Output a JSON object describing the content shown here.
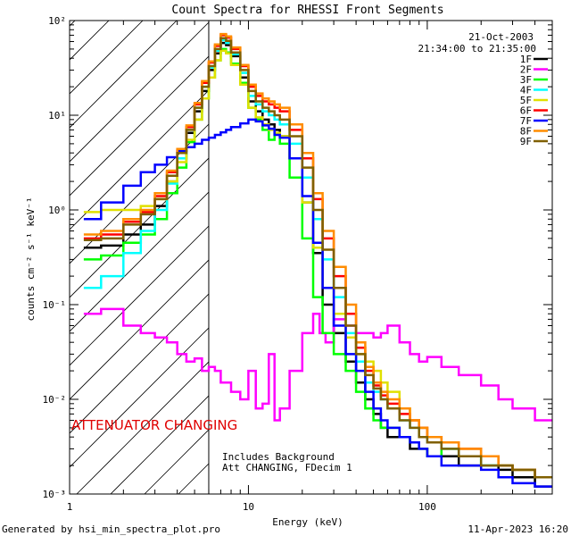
{
  "chart_data": {
    "type": "line",
    "title": "Count Spectra for RHESSI Front Segments",
    "xlabel": "Energy (keV)",
    "ylabel": "counts cm⁻² s⁻¹ keV⁻¹",
    "xscale": "log",
    "yscale": "log",
    "xlim": [
      1,
      500
    ],
    "ylim": [
      0.001,
      100
    ],
    "x_ticks": [
      "1",
      "10",
      "100"
    ],
    "y_ticks": [
      "10⁻³",
      "10⁻²",
      "10⁻¹",
      "10⁰",
      "10¹",
      "10²"
    ],
    "date": "21-Oct-2003",
    "time_range": "21:34:00 to 21:35:00",
    "attenuator_text": "ATTENUATOR CHANGING",
    "background_note": "Includes Background",
    "att_note": "Att CHANGING, FDecim 1",
    "attenuator_boundary_kev": 6,
    "hatch_region_kev": [
      1,
      6
    ],
    "footer_left": "Generated by hsi_min_spectra_plot.pro",
    "footer_right": "11-Apr-2023 16:20",
    "series": [
      {
        "name": "1F",
        "color": "#000000",
        "x": [
          1.2,
          1.5,
          2,
          2.5,
          3,
          3.5,
          4,
          4.5,
          5,
          5.5,
          6,
          6.5,
          7,
          7.5,
          8,
          9,
          10,
          11,
          12,
          13,
          14,
          15,
          17,
          20,
          23,
          26,
          30,
          35,
          40,
          45,
          50,
          55,
          60,
          70,
          80,
          90,
          100,
          120,
          150,
          200,
          250,
          300,
          400
        ],
        "y": [
          0.4,
          0.42,
          0.55,
          0.7,
          1.1,
          2.0,
          3.5,
          6.5,
          11,
          18,
          30,
          45,
          58,
          55,
          42,
          25,
          14,
          11,
          9,
          8,
          7,
          6,
          3.5,
          1.2,
          0.35,
          0.1,
          0.05,
          0.025,
          0.015,
          0.01,
          0.007,
          0.005,
          0.004,
          0.004,
          0.003,
          0.003,
          0.0025,
          0.0025,
          0.002,
          0.002,
          0.0018,
          0.0015,
          0.0012
        ]
      },
      {
        "name": "2F",
        "color": "#ff00ff",
        "x": [
          1.2,
          1.5,
          2,
          2.5,
          3,
          3.5,
          4,
          4.5,
          5,
          5.5,
          6,
          6.5,
          7,
          8,
          9,
          10,
          11,
          12,
          13,
          14,
          15,
          17,
          20,
          23,
          25,
          27,
          30,
          35,
          40,
          45,
          50,
          55,
          60,
          70,
          80,
          90,
          100,
          120,
          150,
          200,
          250,
          300,
          400
        ],
        "y": [
          0.08,
          0.09,
          0.06,
          0.05,
          0.045,
          0.04,
          0.03,
          0.025,
          0.027,
          0.02,
          0.022,
          0.02,
          0.015,
          0.012,
          0.01,
          0.02,
          0.008,
          0.009,
          0.03,
          0.006,
          0.008,
          0.02,
          0.05,
          0.08,
          0.05,
          0.04,
          0.07,
          0.06,
          0.05,
          0.05,
          0.045,
          0.05,
          0.06,
          0.04,
          0.03,
          0.025,
          0.028,
          0.022,
          0.018,
          0.014,
          0.01,
          0.008,
          0.006
        ]
      },
      {
        "name": "3F",
        "color": "#00ff00",
        "x": [
          1.2,
          1.5,
          2,
          2.5,
          3,
          3.5,
          4,
          4.5,
          5,
          5.5,
          6,
          6.5,
          7,
          7.5,
          8,
          9,
          10,
          11,
          12,
          13,
          14,
          15,
          17,
          20,
          23,
          26,
          30,
          35,
          40,
          45,
          50,
          55,
          60,
          70,
          80,
          90,
          100,
          120,
          150,
          200,
          250,
          300,
          400
        ],
        "y": [
          0.3,
          0.33,
          0.45,
          0.55,
          0.8,
          1.5,
          2.8,
          5.2,
          9,
          15,
          25,
          38,
          50,
          46,
          35,
          22,
          12,
          9,
          7,
          5.5,
          6.5,
          5,
          2.2,
          0.5,
          0.12,
          0.05,
          0.03,
          0.02,
          0.012,
          0.008,
          0.006,
          0.005,
          0.005,
          0.004,
          0.0035,
          0.003,
          0.0025,
          0.003,
          0.0025,
          0.002,
          0.002,
          0.0018,
          0.0015
        ]
      },
      {
        "name": "4F",
        "color": "#00ffff",
        "x": [
          1.2,
          1.5,
          2,
          2.5,
          3,
          3.5,
          4,
          4.5,
          5,
          5.5,
          6,
          6.5,
          7,
          7.5,
          8,
          9,
          10,
          11,
          12,
          13,
          14,
          15,
          17,
          20,
          23,
          26,
          30,
          35,
          40,
          45,
          50,
          55,
          60,
          70,
          80,
          90,
          100,
          120,
          150,
          200,
          250,
          300,
          400
        ],
        "y": [
          0.15,
          0.2,
          0.35,
          0.6,
          1.0,
          1.9,
          3.5,
          7,
          12,
          20,
          32,
          48,
          62,
          58,
          44,
          28,
          16,
          13,
          11,
          10,
          9,
          8,
          5,
          2.2,
          0.8,
          0.3,
          0.12,
          0.05,
          0.025,
          0.015,
          0.012,
          0.01,
          0.008,
          0.006,
          0.005,
          0.004,
          0.0035,
          0.003,
          0.0025,
          0.002,
          0.002,
          0.0018,
          0.0015
        ]
      },
      {
        "name": "5F",
        "color": "#e0e000",
        "x": [
          1.2,
          1.5,
          2,
          2.5,
          3,
          3.5,
          4,
          4.5,
          5,
          5.5,
          6,
          6.5,
          7,
          7.5,
          8,
          9,
          10,
          11,
          12,
          13,
          14,
          15,
          17,
          20,
          23,
          26,
          30,
          35,
          40,
          45,
          50,
          55,
          60,
          70,
          80,
          90,
          100,
          120,
          150,
          200,
          250,
          300,
          400
        ],
        "y": [
          0.95,
          1.0,
          1.0,
          1.1,
          1.3,
          2.0,
          3.2,
          5.5,
          9,
          15,
          25,
          38,
          48,
          45,
          34,
          21,
          12,
          9.5,
          8,
          7,
          6.5,
          6,
          3.5,
          1.2,
          0.4,
          0.15,
          0.08,
          0.045,
          0.03,
          0.025,
          0.02,
          0.015,
          0.012,
          0.008,
          0.006,
          0.005,
          0.004,
          0.0035,
          0.003,
          0.0025,
          0.002,
          0.0018,
          0.0015
        ]
      },
      {
        "name": "6F",
        "color": "#ff0000",
        "x": [
          1.2,
          1.5,
          2,
          2.5,
          3,
          3.5,
          4,
          4.5,
          5,
          5.5,
          6,
          6.5,
          7,
          7.5,
          8,
          9,
          10,
          11,
          12,
          13,
          14,
          15,
          17,
          20,
          23,
          26,
          30,
          35,
          40,
          45,
          50,
          55,
          60,
          70,
          80,
          90,
          100,
          120,
          150,
          200,
          250,
          300,
          400
        ],
        "y": [
          0.5,
          0.55,
          0.75,
          0.95,
          1.4,
          2.5,
          4.2,
          7.5,
          13,
          22,
          36,
          54,
          70,
          66,
          50,
          33,
          20,
          16,
          14,
          13,
          12,
          11,
          7,
          3.5,
          1.3,
          0.5,
          0.2,
          0.08,
          0.035,
          0.02,
          0.014,
          0.011,
          0.009,
          0.007,
          0.006,
          0.005,
          0.004,
          0.0035,
          0.003,
          0.0025,
          0.002,
          0.0018,
          0.0015
        ]
      },
      {
        "name": "7F",
        "color": "#0000ff",
        "x": [
          1.2,
          1.5,
          2,
          2.5,
          3,
          3.5,
          4,
          4.5,
          5,
          5.5,
          6,
          6.5,
          7,
          7.5,
          8,
          9,
          10,
          11,
          12,
          13,
          14,
          15,
          17,
          20,
          23,
          26,
          30,
          35,
          40,
          45,
          50,
          55,
          60,
          70,
          80,
          90,
          100,
          120,
          150,
          200,
          250,
          300,
          400
        ],
        "y": [
          0.8,
          1.2,
          1.8,
          2.5,
          3.0,
          3.6,
          4.2,
          4.6,
          5.0,
          5.5,
          5.8,
          6.2,
          6.6,
          7.0,
          7.5,
          8.2,
          9.0,
          8.6,
          7.8,
          7.2,
          6.2,
          5.8,
          3.5,
          1.4,
          0.45,
          0.15,
          0.06,
          0.03,
          0.02,
          0.012,
          0.008,
          0.006,
          0.005,
          0.004,
          0.0035,
          0.003,
          0.0025,
          0.002,
          0.002,
          0.0018,
          0.0015,
          0.0013,
          0.0012
        ]
      },
      {
        "name": "8F",
        "color": "#ff8c00",
        "x": [
          1.2,
          1.5,
          2,
          2.5,
          3,
          3.5,
          4,
          4.5,
          5,
          5.5,
          6,
          6.5,
          7,
          7.5,
          8,
          9,
          10,
          11,
          12,
          13,
          14,
          15,
          17,
          20,
          23,
          26,
          30,
          35,
          40,
          45,
          50,
          55,
          60,
          70,
          80,
          90,
          100,
          120,
          150,
          200,
          250,
          300,
          400
        ],
        "y": [
          0.55,
          0.6,
          0.8,
          1.0,
          1.5,
          2.6,
          4.4,
          7.8,
          13.5,
          23,
          37,
          56,
          72,
          68,
          52,
          34,
          21,
          17,
          15,
          14,
          13,
          12,
          8,
          4,
          1.5,
          0.6,
          0.25,
          0.1,
          0.04,
          0.022,
          0.015,
          0.012,
          0.01,
          0.008,
          0.006,
          0.005,
          0.004,
          0.0035,
          0.003,
          0.0025,
          0.002,
          0.0018,
          0.0015
        ]
      },
      {
        "name": "9F",
        "color": "#806000",
        "x": [
          1.2,
          1.5,
          2,
          2.5,
          3,
          3.5,
          4,
          4.5,
          5,
          5.5,
          6,
          6.5,
          7,
          7.5,
          8,
          9,
          10,
          11,
          12,
          13,
          14,
          15,
          17,
          20,
          23,
          26,
          30,
          35,
          40,
          45,
          50,
          55,
          60,
          70,
          80,
          90,
          100,
          120,
          150,
          200,
          250,
          300,
          400
        ],
        "y": [
          0.48,
          0.5,
          0.7,
          0.9,
          1.3,
          2.3,
          4.0,
          7.0,
          12,
          20,
          33,
          50,
          65,
          61,
          46,
          30,
          18,
          14,
          12,
          11,
          10,
          9,
          6,
          2.8,
          1.0,
          0.38,
          0.15,
          0.06,
          0.03,
          0.018,
          0.013,
          0.01,
          0.008,
          0.006,
          0.005,
          0.004,
          0.0035,
          0.003,
          0.0025,
          0.002,
          0.002,
          0.0018,
          0.0015
        ]
      }
    ]
  }
}
